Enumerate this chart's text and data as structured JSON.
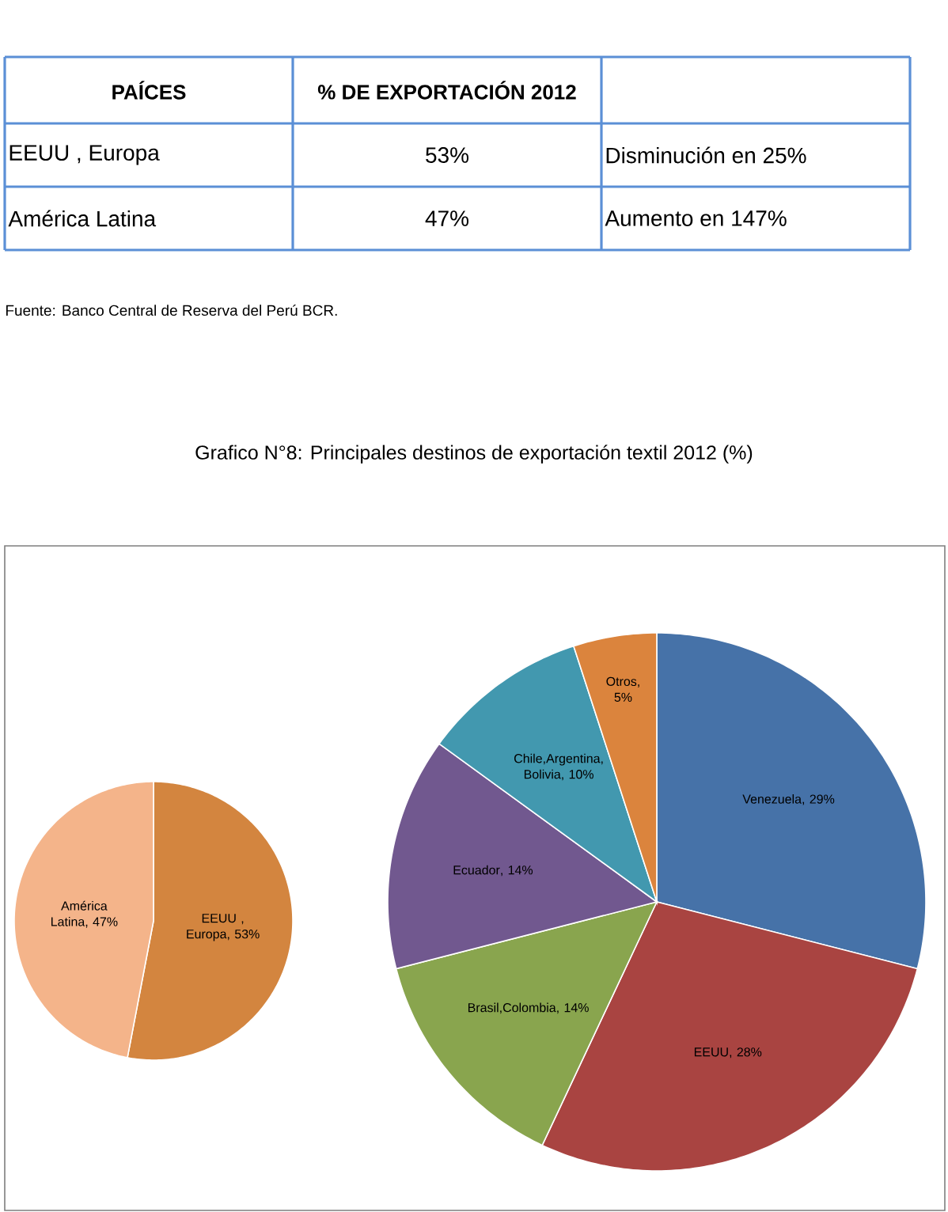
{
  "chart_data": [
    {
      "type": "other",
      "annotations": [
        "PAÍCES",
        "% DE EXPORTACIÓN 2012",
        "EEUU , Europa",
        "53%",
        "Disminución en 25%",
        "América Latina",
        "47%",
        "Aumento en 147%",
        "Fuente: Banco Central de Reserva del Perú BCR."
      ]
    },
    {
      "type": "pie",
      "title": "Grafico N°8: Principales destinos de exportación textil 2012 (%)",
      "categories": [
        "EEUU , Europa",
        "América Latina"
      ],
      "values": [
        53,
        47
      ],
      "colors": [
        "#d3853f",
        "#f4b48a"
      ],
      "value_labels": [
        ", 53%",
        ", 47%"
      ]
    },
    {
      "type": "pie",
      "categories": [
        "Venezuela",
        "EEUU",
        "Brasil,Colombia",
        "Ecuador",
        "Chile,Argentina, Bolivia",
        "Otros"
      ],
      "values": [
        29,
        28,
        14,
        14,
        10,
        5
      ],
      "colors": [
        "#4672a8",
        "#a94441",
        "#89a54e",
        "#71588f",
        "#4298af",
        "#db843d"
      ],
      "value_labels": [
        ", 29%",
        ", 28%",
        ", 14%",
        ", 14%",
        ", 10%",
        ", 5%"
      ]
    }
  ]
}
